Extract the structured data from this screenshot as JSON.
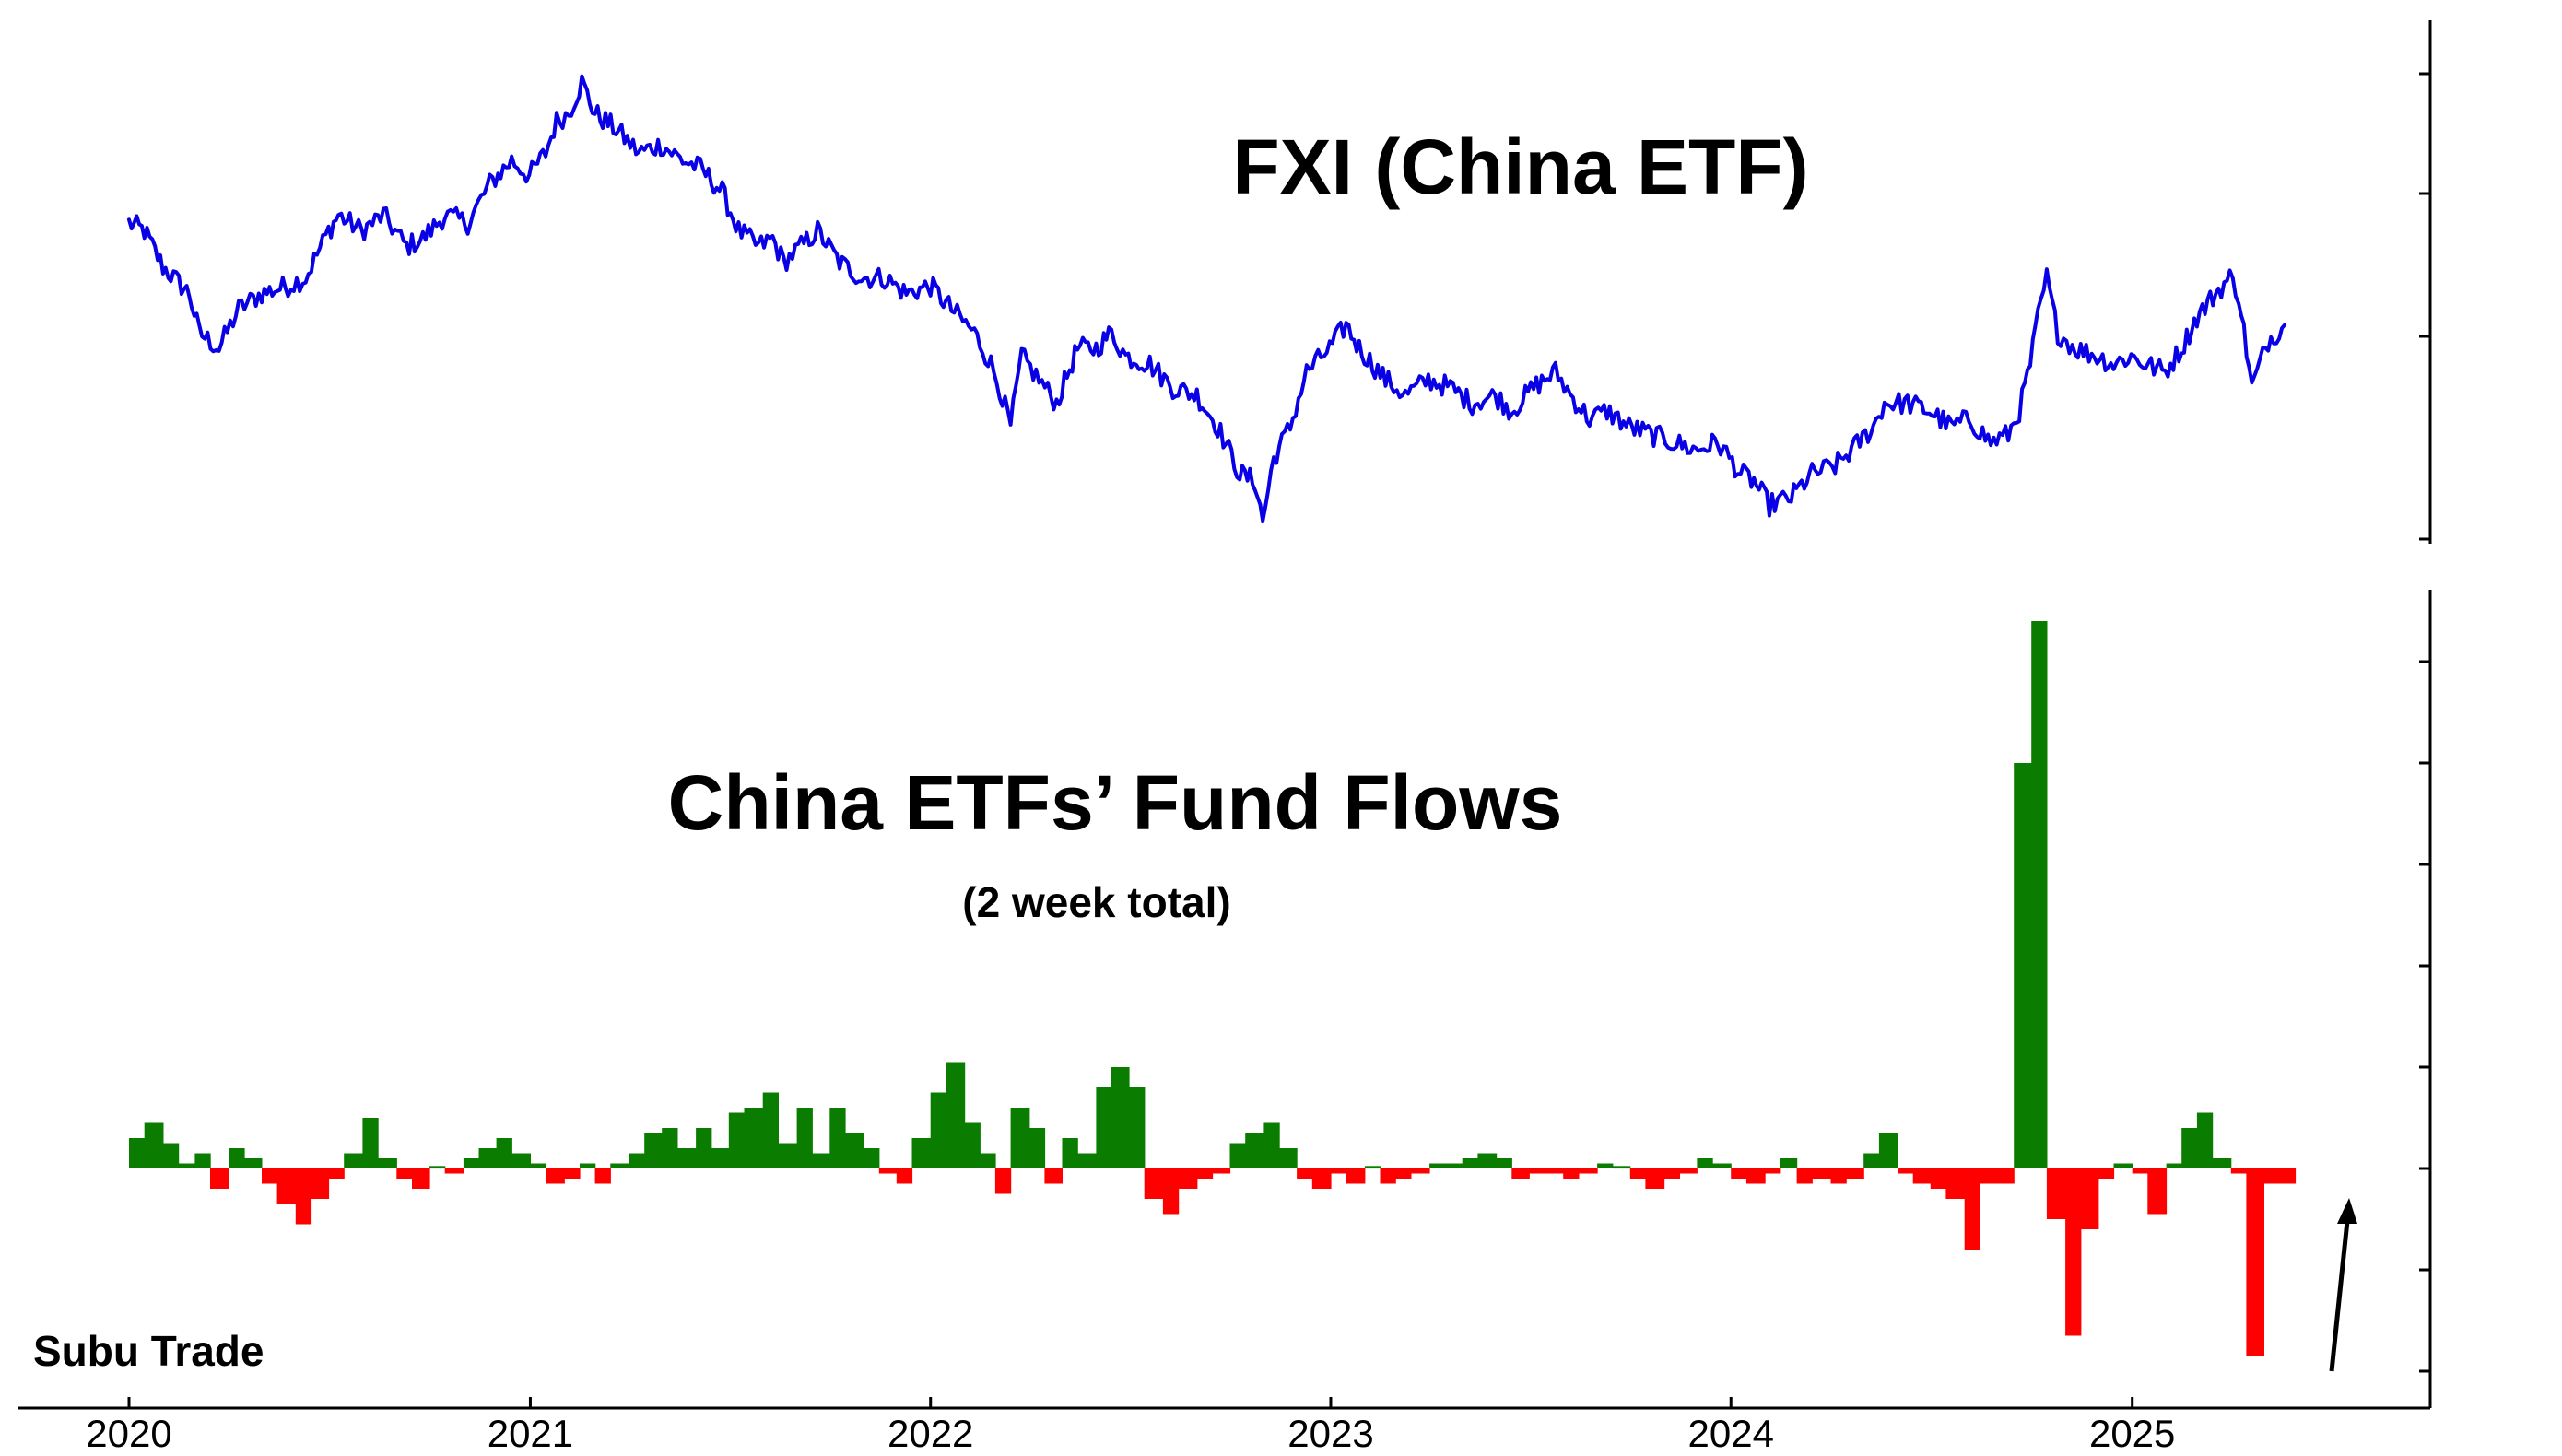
{
  "chart_data": [
    {
      "type": "line",
      "title": "FXI (China ETF)",
      "x_axis": {
        "ticks": [
          "2020",
          "2021",
          "2022",
          "2023",
          "2024",
          "2025"
        ],
        "range": [
          "2020-01-01",
          "2025-06-15"
        ]
      },
      "y_axis": {
        "tick_labels_visible": false,
        "scale": "relative"
      },
      "grid": false,
      "series": [
        {
          "color": "#0a00e6",
          "x": [
            "2020-01-01",
            "2020-01-15",
            "2020-02-01",
            "2020-02-25",
            "2020-03-05",
            "2020-03-23",
            "2020-04-10",
            "2020-05-01",
            "2020-05-25",
            "2020-06-10",
            "2020-07-01",
            "2020-07-10",
            "2020-07-31",
            "2020-08-20",
            "2020-09-10",
            "2020-09-25",
            "2020-10-15",
            "2020-11-05",
            "2020-11-25",
            "2020-12-15",
            "2020-12-31",
            "2021-01-15",
            "2021-01-25",
            "2021-02-05",
            "2021-02-17",
            "2021-03-01",
            "2021-03-20",
            "2021-04-10",
            "2021-04-30",
            "2021-05-20",
            "2021-06-05",
            "2021-06-25",
            "2021-07-10",
            "2021-07-28",
            "2021-08-10",
            "2021-08-20",
            "2021-09-05",
            "2021-09-20",
            "2021-10-10",
            "2021-10-30",
            "2021-11-20",
            "2021-12-10",
            "2022-01-01",
            "2022-01-20",
            "2022-02-10",
            "2022-02-25",
            "2022-03-05",
            "2022-03-15",
            "2022-03-25",
            "2022-04-10",
            "2022-04-26",
            "2022-05-15",
            "2022-06-01",
            "2022-06-15",
            "2022-06-28",
            "2022-07-20",
            "2022-08-10",
            "2022-09-01",
            "2022-09-20",
            "2022-10-10",
            "2022-10-24",
            "2022-10-31",
            "2022-11-10",
            "2022-11-25",
            "2022-12-10",
            "2022-12-31",
            "2023-01-15",
            "2023-01-27",
            "2023-02-20",
            "2023-03-10",
            "2023-03-31",
            "2023-04-20",
            "2023-05-10",
            "2023-05-31",
            "2023-06-15",
            "2023-07-05",
            "2023-07-25",
            "2023-08-10",
            "2023-08-25",
            "2023-09-10",
            "2023-09-30",
            "2023-10-20",
            "2023-11-10",
            "2023-11-30",
            "2023-12-20",
            "2024-01-10",
            "2024-01-22",
            "2024-02-05",
            "2024-02-25",
            "2024-03-15",
            "2024-04-05",
            "2024-04-20",
            "2024-05-10",
            "2024-05-20",
            "2024-06-10",
            "2024-06-30",
            "2024-07-20",
            "2024-08-05",
            "2024-08-25",
            "2024-09-10",
            "2024-09-20",
            "2024-09-30",
            "2024-10-07",
            "2024-10-15",
            "2024-10-25",
            "2024-11-10",
            "2024-11-30",
            "2024-12-15",
            "2024-12-31",
            "2025-01-13",
            "2025-01-31",
            "2025-02-15",
            "2025-03-01",
            "2025-03-18",
            "2025-03-31",
            "2025-04-08",
            "2025-04-20",
            "2025-05-05",
            "2025-05-20"
          ],
          "y": [
            1.9,
            1.85,
            1.62,
            1.45,
            1.2,
            1.1,
            1.35,
            1.45,
            1.5,
            1.55,
            1.85,
            1.95,
            1.85,
            1.95,
            1.75,
            1.8,
            1.95,
            1.9,
            2.15,
            2.3,
            2.2,
            2.35,
            2.55,
            2.6,
            2.8,
            2.6,
            2.5,
            2.35,
            2.4,
            2.3,
            2.25,
            2.1,
            1.85,
            1.75,
            1.8,
            1.65,
            1.75,
            1.85,
            1.65,
            1.55,
            1.55,
            1.45,
            1.5,
            1.35,
            1.2,
            1.0,
            0.85,
            0.6,
            1.05,
            0.9,
            0.75,
            1.1,
            1.1,
            1.2,
            1.05,
            1.0,
            0.85,
            0.8,
            0.6,
            0.3,
            0.25,
            0.0,
            0.4,
            0.6,
            0.95,
            1.1,
            1.25,
            1.1,
            0.9,
            0.8,
            0.9,
            0.85,
            0.75,
            0.8,
            0.7,
            0.85,
            0.95,
            0.78,
            0.65,
            0.7,
            0.6,
            0.55,
            0.5,
            0.45,
            0.5,
            0.3,
            0.25,
            0.1,
            0.15,
            0.3,
            0.35,
            0.45,
            0.6,
            0.75,
            0.75,
            0.7,
            0.6,
            0.65,
            0.5,
            0.55,
            0.7,
            1.0,
            1.3,
            1.55,
            1.2,
            1.1,
            1.05,
            1.0,
            1.05,
            1.0,
            0.95,
            1.1,
            1.3,
            1.45,
            1.55,
            1.45,
            0.85,
            1.15,
            1.25
          ]
        }
      ]
    },
    {
      "type": "bar",
      "title": "China ETFs’ Fund Flows",
      "subtitle": "(2 week total)",
      "y_axis": {
        "tick_labels_visible": false,
        "scale": "relative",
        "range": [
          -4,
          11
        ]
      },
      "grid": false,
      "colors": {
        "inflow": "#0a7d00",
        "outflow": "#ff0000"
      },
      "series": [
        {
          "x": [
            "2020-01-01",
            "2020-01-15",
            "2020-02-01",
            "2020-02-15",
            "2020-03-01",
            "2020-03-15",
            "2020-04-01",
            "2020-04-15",
            "2020-05-01",
            "2020-05-15",
            "2020-06-01",
            "2020-06-15",
            "2020-07-01",
            "2020-07-15",
            "2020-08-01",
            "2020-08-15",
            "2020-09-01",
            "2020-09-15",
            "2020-10-01",
            "2020-10-15",
            "2020-11-01",
            "2020-11-15",
            "2020-12-01",
            "2020-12-15",
            "2021-01-01",
            "2021-01-15",
            "2021-02-01",
            "2021-02-15",
            "2021-03-01",
            "2021-03-15",
            "2021-04-01",
            "2021-04-15",
            "2021-05-01",
            "2021-05-15",
            "2021-06-01",
            "2021-06-15",
            "2021-07-01",
            "2021-07-15",
            "2021-08-01",
            "2021-08-15",
            "2021-09-01",
            "2021-09-15",
            "2021-10-01",
            "2021-10-15",
            "2021-11-01",
            "2021-11-15",
            "2021-12-01",
            "2021-12-15",
            "2022-01-01",
            "2022-01-15",
            "2022-02-01",
            "2022-02-15",
            "2022-03-01",
            "2022-03-15",
            "2022-04-01",
            "2022-04-15",
            "2022-05-01",
            "2022-05-15",
            "2022-06-01",
            "2022-06-15",
            "2022-07-01",
            "2022-07-15",
            "2022-08-01",
            "2022-08-15",
            "2022-09-01",
            "2022-09-15",
            "2022-10-01",
            "2022-10-15",
            "2022-11-01",
            "2022-11-15",
            "2022-12-01",
            "2022-12-15",
            "2023-01-01",
            "2023-01-15",
            "2023-02-01",
            "2023-02-15",
            "2023-03-01",
            "2023-03-15",
            "2023-04-01",
            "2023-04-15",
            "2023-05-01",
            "2023-05-15",
            "2023-06-01",
            "2023-06-15",
            "2023-07-01",
            "2023-07-15",
            "2023-08-01",
            "2023-08-15",
            "2023-09-01",
            "2023-09-15",
            "2023-10-01",
            "2023-10-15",
            "2023-11-01",
            "2023-11-15",
            "2023-12-01",
            "2023-12-15",
            "2024-01-01",
            "2024-01-15",
            "2024-02-01",
            "2024-02-15",
            "2024-03-01",
            "2024-03-15",
            "2024-04-01",
            "2024-04-15",
            "2024-05-01",
            "2024-05-15",
            "2024-06-01",
            "2024-06-15",
            "2024-07-01",
            "2024-07-15",
            "2024-08-01",
            "2024-08-15",
            "2024-09-01",
            "2024-09-15",
            "2024-10-01",
            "2024-10-15",
            "2024-11-01",
            "2024-11-15",
            "2024-12-01",
            "2024-12-15",
            "2025-01-01",
            "2025-01-15",
            "2025-02-01",
            "2025-02-15",
            "2025-03-01",
            "2025-03-15",
            "2025-04-01",
            "2025-04-15",
            "2025-05-01"
          ],
          "values": [
            0.6,
            0.9,
            0.5,
            0.1,
            0.3,
            -0.4,
            0.4,
            0.2,
            -0.3,
            -0.7,
            -1.1,
            -0.6,
            -0.2,
            0.3,
            1.0,
            0.2,
            -0.2,
            -0.4,
            0.05,
            -0.1,
            0.2,
            0.4,
            0.6,
            0.3,
            0.1,
            -0.3,
            -0.2,
            0.1,
            -0.3,
            0.1,
            0.3,
            0.7,
            0.8,
            0.4,
            0.8,
            0.4,
            1.1,
            1.2,
            1.5,
            0.5,
            1.2,
            0.3,
            1.2,
            0.7,
            0.4,
            -0.1,
            -0.3,
            0.6,
            1.5,
            2.1,
            0.9,
            0.3,
            -0.5,
            1.2,
            0.8,
            -0.3,
            0.6,
            0.3,
            1.6,
            2.0,
            1.6,
            -0.6,
            -0.9,
            -0.4,
            -0.2,
            -0.1,
            0.5,
            0.7,
            0.9,
            0.4,
            -0.2,
            -0.4,
            -0.1,
            -0.3,
            0.05,
            -0.3,
            -0.2,
            -0.1,
            0.1,
            0.1,
            0.2,
            0.3,
            0.2,
            -0.2,
            -0.1,
            -0.1,
            -0.2,
            -0.1,
            0.1,
            0.05,
            -0.2,
            -0.4,
            -0.2,
            -0.1,
            0.2,
            0.1,
            -0.2,
            -0.3,
            -0.1,
            0.2,
            -0.3,
            -0.2,
            -0.3,
            -0.2,
            0.3,
            0.7,
            -0.1,
            -0.3,
            -0.4,
            -0.6,
            -1.6,
            -0.3,
            -0.3,
            8.0,
            10.8,
            -1.0,
            -3.3,
            -1.2,
            -0.2,
            0.1,
            -0.1,
            -0.9,
            0.1,
            0.8,
            1.1,
            0.2,
            -0.1,
            -3.7,
            -0.3
          ]
        }
      ]
    }
  ],
  "annotations": {
    "watermark": "Subu Trade"
  }
}
